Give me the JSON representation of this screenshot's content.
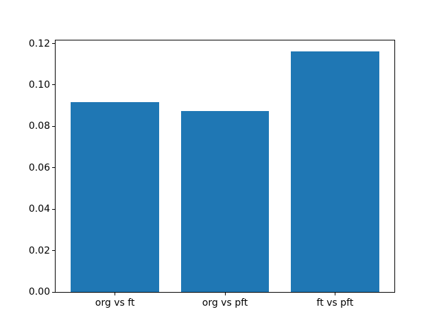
{
  "figure": {
    "background": "#ffffff",
    "spine_color": "#000000",
    "tick_color": "#000000",
    "text_color": "#000000"
  },
  "chart_data": {
    "type": "bar",
    "categories": [
      "org vs ft",
      "org vs pft",
      "ft vs pft"
    ],
    "values": [
      0.0917,
      0.0875,
      0.1162
    ],
    "title": "",
    "xlabel": "",
    "ylabel": "",
    "xlim": [
      -0.54,
      2.54
    ],
    "ylim": [
      0,
      0.1215
    ],
    "yticks": [
      0,
      0.02,
      0.04,
      0.06,
      0.08,
      0.1,
      0.12
    ],
    "ytick_labels": [
      "0.00",
      "0.02",
      "0.04",
      "0.06",
      "0.08",
      "0.10",
      "0.12"
    ],
    "bar_color": "#1f77b4",
    "bar_width": 0.8,
    "grid": false,
    "legend": false
  }
}
